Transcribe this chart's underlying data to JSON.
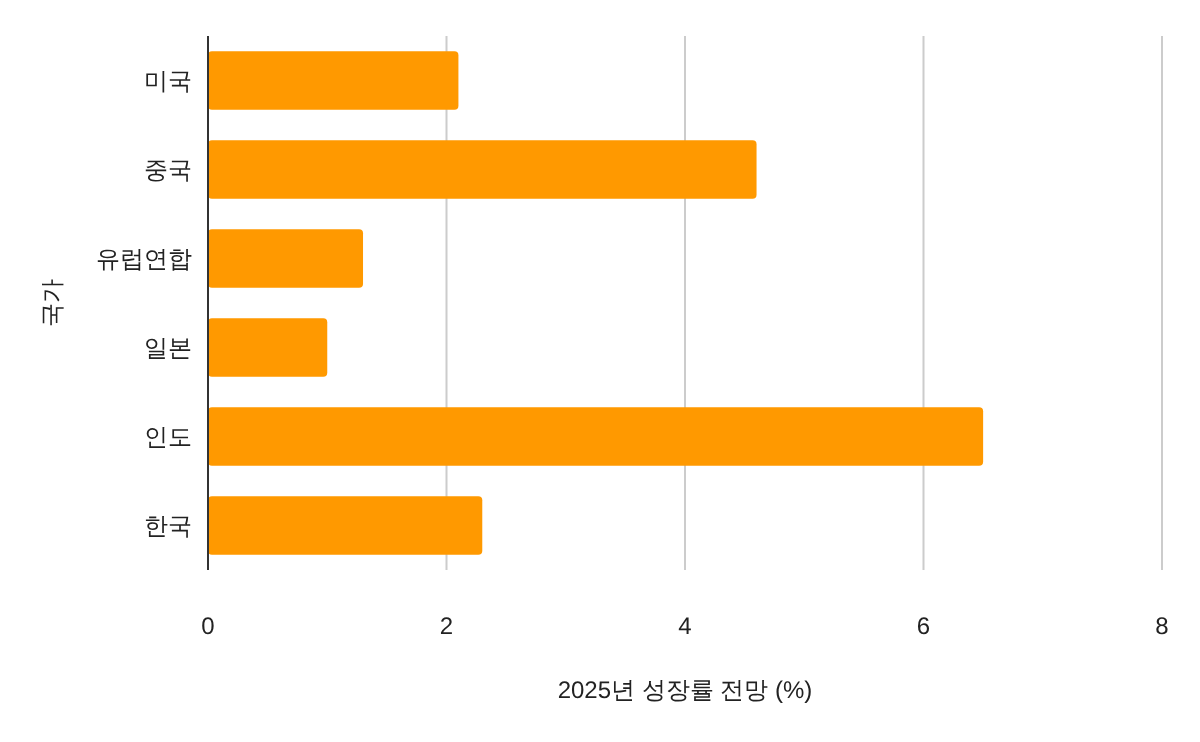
{
  "chart_data": {
    "type": "bar",
    "orientation": "horizontal",
    "xlabel": "2025년 성장률 전망 (%)",
    "ylabel": "국가",
    "categories": [
      "미국",
      "중국",
      "유럽연합",
      "일본",
      "인도",
      "한국"
    ],
    "values": [
      2.1,
      4.6,
      1.3,
      1.0,
      6.5,
      2.3
    ],
    "color": "#ff9900",
    "xlim": [
      0,
      8
    ],
    "xticks": [
      0,
      2,
      4,
      6,
      8
    ],
    "grid": "x"
  }
}
